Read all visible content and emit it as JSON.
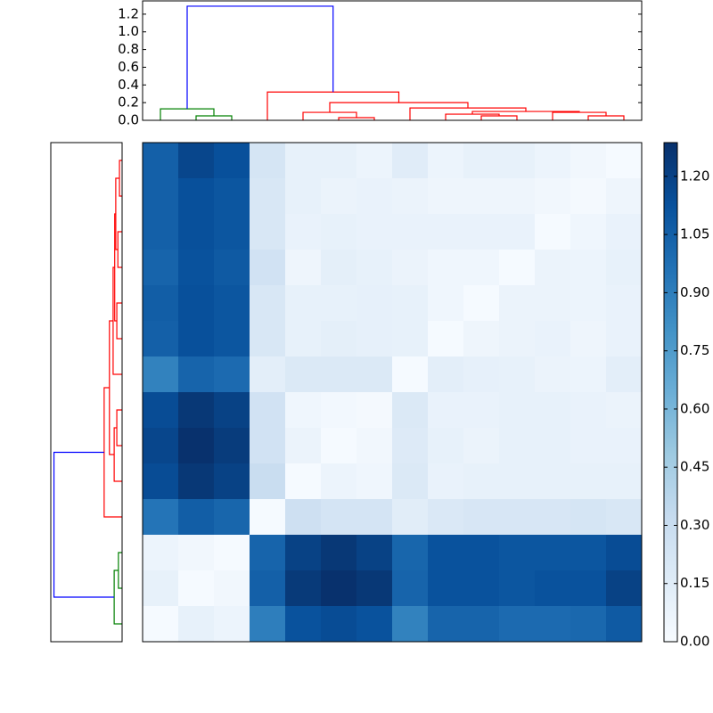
{
  "chart_data": {
    "type": "heatmap",
    "values": [
      [
        1.05,
        1.18,
        1.13,
        0.22,
        0.1,
        0.1,
        0.07,
        0.15,
        0.07,
        0.1,
        0.1,
        0.07,
        0.04,
        0.01
      ],
      [
        1.05,
        1.13,
        1.1,
        0.2,
        0.1,
        0.08,
        0.09,
        0.08,
        0.06,
        0.06,
        0.06,
        0.04,
        0.02,
        0.06
      ],
      [
        1.05,
        1.13,
        1.1,
        0.2,
        0.09,
        0.1,
        0.09,
        0.09,
        0.09,
        0.09,
        0.09,
        0.01,
        0.05,
        0.09
      ],
      [
        1.03,
        1.12,
        1.08,
        0.25,
        0.06,
        0.12,
        0.1,
        0.08,
        0.05,
        0.05,
        0.01,
        0.08,
        0.07,
        0.1
      ],
      [
        1.06,
        1.13,
        1.1,
        0.2,
        0.1,
        0.1,
        0.11,
        0.1,
        0.05,
        0.01,
        0.08,
        0.08,
        0.07,
        0.09
      ],
      [
        1.05,
        1.13,
        1.1,
        0.2,
        0.1,
        0.12,
        0.11,
        0.1,
        0.01,
        0.06,
        0.08,
        0.09,
        0.06,
        0.09
      ],
      [
        0.88,
        1.03,
        1.0,
        0.13,
        0.18,
        0.18,
        0.18,
        0.01,
        0.13,
        0.11,
        0.1,
        0.08,
        0.07,
        0.13
      ],
      [
        1.15,
        1.25,
        1.2,
        0.25,
        0.05,
        0.03,
        0.02,
        0.18,
        0.09,
        0.09,
        0.1,
        0.1,
        0.09,
        0.08
      ],
      [
        1.18,
        1.28,
        1.23,
        0.25,
        0.08,
        0.01,
        0.04,
        0.17,
        0.1,
        0.08,
        0.1,
        0.1,
        0.09,
        0.09
      ],
      [
        1.15,
        1.25,
        1.2,
        0.3,
        0.01,
        0.07,
        0.05,
        0.18,
        0.09,
        0.1,
        0.1,
        0.1,
        0.1,
        0.1
      ],
      [
        0.95,
        1.06,
        1.02,
        0.01,
        0.27,
        0.23,
        0.23,
        0.14,
        0.19,
        0.21,
        0.21,
        0.21,
        0.22,
        0.2
      ],
      [
        0.07,
        0.04,
        0.01,
        1.03,
        1.2,
        1.25,
        1.2,
        1.02,
        1.12,
        1.12,
        1.1,
        1.1,
        1.1,
        1.15
      ],
      [
        0.1,
        0.01,
        0.04,
        1.05,
        1.24,
        1.28,
        1.25,
        1.03,
        1.12,
        1.12,
        1.1,
        1.12,
        1.12,
        1.2
      ],
      [
        0.01,
        0.1,
        0.07,
        0.9,
        1.12,
        1.15,
        1.12,
        0.88,
        1.03,
        1.03,
        1.0,
        1.0,
        1.01,
        1.08
      ]
    ],
    "zlim": [
      0,
      1.287
    ],
    "colormap": [
      "#f7fbff",
      "#deebf7",
      "#c6dbef",
      "#9ecae1",
      "#6baed6",
      "#4292c6",
      "#2171b5",
      "#08519c",
      "#08306b"
    ],
    "colorbar_ticks": [
      {
        "value": 0,
        "label": "0.00"
      },
      {
        "value": 0.15,
        "label": "0.15"
      },
      {
        "value": 0.3,
        "label": "0.30"
      },
      {
        "value": 0.45,
        "label": "0.45"
      },
      {
        "value": 0.6,
        "label": "0.60"
      },
      {
        "value": 0.75,
        "label": "0.75"
      },
      {
        "value": 0.9,
        "label": "0.90"
      },
      {
        "value": 1.05,
        "label": "1.05"
      },
      {
        "value": 1.2,
        "label": "1.20"
      }
    ],
    "top_dendrogram": {
      "xlim": [
        0,
        140
      ],
      "ylim": [
        0,
        1.35
      ],
      "yticks": [
        {
          "value": 0,
          "label": "0.0"
        },
        {
          "value": 0.2,
          "label": "0.2"
        },
        {
          "value": 0.4,
          "label": "0.4"
        },
        {
          "value": 0.6,
          "label": "0.6"
        },
        {
          "value": 0.8,
          "label": "0.8"
        },
        {
          "value": 1,
          "label": "1.0"
        },
        {
          "value": 1.2,
          "label": "1.2"
        }
      ],
      "links": [
        {
          "icoord": [
            5,
            5,
            20,
            20
          ],
          "dcoord": [
            0,
            0.13,
            0.13,
            0.05
          ],
          "color": "#008000"
        },
        {
          "icoord": [
            15,
            15,
            25,
            25
          ],
          "dcoord": [
            0,
            0.05,
            0.05,
            0
          ],
          "color": "#008000"
        },
        {
          "icoord": [
            55,
            55,
            65,
            65
          ],
          "dcoord": [
            0,
            0.03,
            0.03,
            0
          ],
          "color": "#ff0000"
        },
        {
          "icoord": [
            45,
            45,
            60,
            60
          ],
          "dcoord": [
            0,
            0.09,
            0.09,
            0.03
          ],
          "color": "#ff0000"
        },
        {
          "icoord": [
            95,
            95,
            105,
            105
          ],
          "dcoord": [
            0,
            0.05,
            0.05,
            0
          ],
          "color": "#ff0000"
        },
        {
          "icoord": [
            85,
            85,
            100,
            100
          ],
          "dcoord": [
            0,
            0.07,
            0.07,
            0.05
          ],
          "color": "#ff0000"
        },
        {
          "icoord": [
            125,
            125,
            135,
            135
          ],
          "dcoord": [
            0,
            0.05,
            0.05,
            0
          ],
          "color": "#ff0000"
        },
        {
          "icoord": [
            115,
            115,
            130,
            130
          ],
          "dcoord": [
            0,
            0.09,
            0.09,
            0.05
          ],
          "color": "#ff0000"
        },
        {
          "icoord": [
            92.5,
            92.5,
            122.5,
            122.5
          ],
          "dcoord": [
            0.07,
            0.1,
            0.1,
            0.09
          ],
          "color": "#ff0000"
        },
        {
          "icoord": [
            75,
            75,
            107.5,
            107.5
          ],
          "dcoord": [
            0,
            0.14,
            0.14,
            0.1
          ],
          "color": "#ff0000"
        },
        {
          "icoord": [
            52.5,
            52.5,
            91.25,
            91.25
          ],
          "dcoord": [
            0.09,
            0.2,
            0.2,
            0.14
          ],
          "color": "#ff0000"
        },
        {
          "icoord": [
            35,
            35,
            71.875,
            71.875
          ],
          "dcoord": [
            0,
            0.32,
            0.32,
            0.2
          ],
          "color": "#ff0000"
        },
        {
          "icoord": [
            12.5,
            12.5,
            53.4375,
            53.4375
          ],
          "dcoord": [
            0.13,
            1.29,
            1.29,
            0.32
          ],
          "color": "#0000ff"
        }
      ]
    },
    "left_dendrogram": {
      "ylim": [
        0,
        140
      ],
      "xlim": [
        0,
        1.35
      ],
      "links": [
        {
          "icoord": [
            5,
            5,
            15,
            15
          ],
          "dcoord": [
            0,
            0.05,
            0.05,
            0
          ],
          "color": "#ff0000"
        },
        {
          "icoord": [
            25,
            25,
            35,
            35
          ],
          "dcoord": [
            0,
            0.08,
            0.08,
            0
          ],
          "color": "#ff0000"
        },
        {
          "icoord": [
            10,
            10,
            30,
            30
          ],
          "dcoord": [
            0.05,
            0.12,
            0.12,
            0.08
          ],
          "color": "#ff0000"
        },
        {
          "icoord": [
            45,
            45,
            55,
            55
          ],
          "dcoord": [
            0,
            0.1,
            0.1,
            0
          ],
          "color": "#ff0000"
        },
        {
          "icoord": [
            20,
            20,
            50,
            50
          ],
          "dcoord": [
            0.12,
            0.14,
            0.14,
            0.1
          ],
          "color": "#ff0000"
        },
        {
          "icoord": [
            35,
            35,
            65,
            65
          ],
          "dcoord": [
            0.14,
            0.17,
            0.17,
            0
          ],
          "color": "#ff0000"
        },
        {
          "icoord": [
            75,
            75,
            85,
            85
          ],
          "dcoord": [
            0,
            0.1,
            0.1,
            0
          ],
          "color": "#ff0000"
        },
        {
          "icoord": [
            80,
            80,
            95,
            95
          ],
          "dcoord": [
            0.1,
            0.15,
            0.15,
            0
          ],
          "color": "#ff0000"
        },
        {
          "icoord": [
            50,
            50,
            87.5,
            87.5
          ],
          "dcoord": [
            0.17,
            0.24,
            0.24,
            0.15
          ],
          "color": "#ff0000"
        },
        {
          "icoord": [
            68.75,
            68.75,
            105,
            105
          ],
          "dcoord": [
            0.24,
            0.34,
            0.34,
            0
          ],
          "color": "#ff0000"
        },
        {
          "icoord": [
            115,
            115,
            125,
            125
          ],
          "dcoord": [
            0,
            0.07,
            0.07,
            0
          ],
          "color": "#008000"
        },
        {
          "icoord": [
            120,
            120,
            135,
            135
          ],
          "dcoord": [
            0.07,
            0.15,
            0.15,
            0
          ],
          "color": "#008000"
        },
        {
          "icoord": [
            86.875,
            86.875,
            127.5,
            127.5
          ],
          "dcoord": [
            0.34,
            1.29,
            1.29,
            0.15
          ],
          "color": "#0000ff"
        }
      ]
    }
  }
}
